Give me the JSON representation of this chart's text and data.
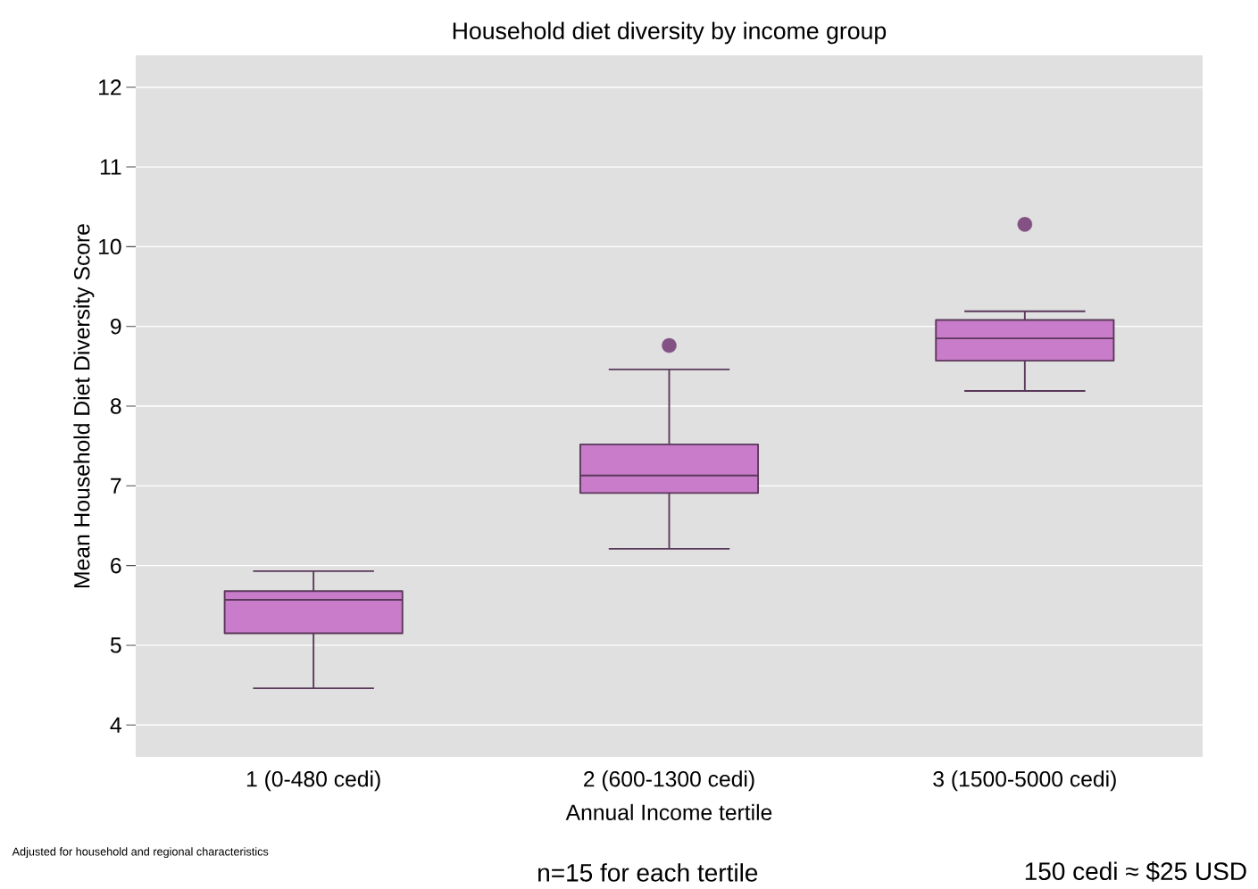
{
  "chart_data": {
    "type": "box",
    "title": "Household diet diversity by income group",
    "xlabel": "Annual Income tertile",
    "ylabel": "Mean Household Diet Diversity Score",
    "categories": [
      "1 (0-480 cedi)",
      "2 (600-1300 cedi)",
      "3 (1500-5000 cedi)"
    ],
    "series": [
      {
        "color": "#c97cc9",
        "boxes": [
          {
            "low": 4.46,
            "q1": 5.15,
            "median": 5.57,
            "q3": 5.68,
            "high": 5.93
          },
          {
            "low": 6.21,
            "q1": 6.91,
            "median": 7.13,
            "q3": 7.52,
            "high": 8.46,
            "outliers": [
              8.76
            ]
          },
          {
            "low": 8.19,
            "q1": 8.57,
            "median": 8.85,
            "q3": 9.08,
            "high": 9.19,
            "outliers": [
              10.28
            ]
          }
        ]
      }
    ],
    "ylim": [
      3.6,
      12.4
    ],
    "yticks": [
      4,
      5,
      6,
      7,
      8,
      9,
      10,
      11,
      12
    ],
    "grid": "y",
    "marker": "circle",
    "annotations": [
      "Adjusted for household and regional characteristics",
      "n=15 for each tertile",
      "150 cedi ≈ $25 USD"
    ]
  }
}
